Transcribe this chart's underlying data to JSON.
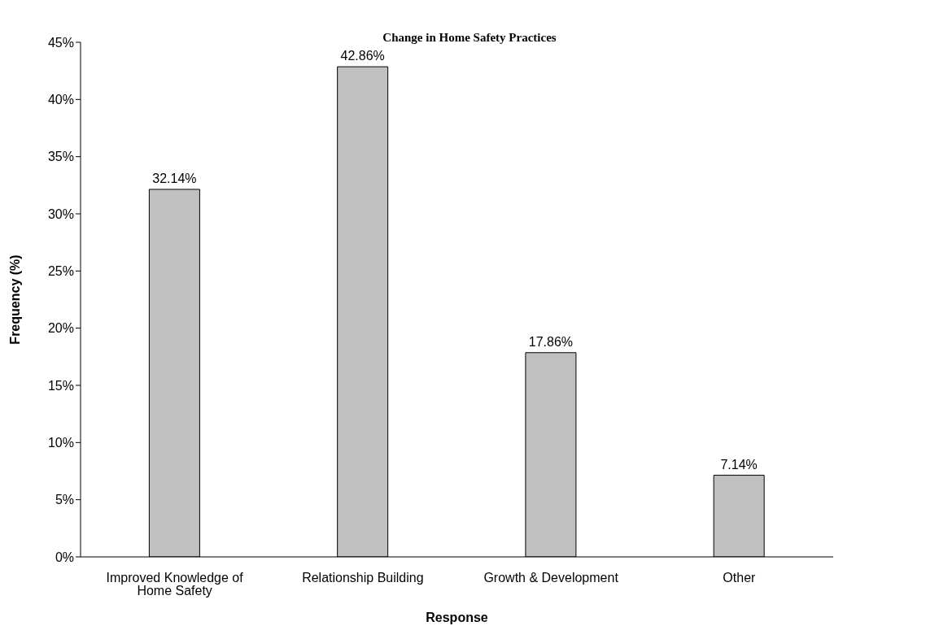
{
  "chart_data": {
    "type": "bar",
    "title": "Change in Home Safety Practices",
    "xlabel": "Response",
    "ylabel": "Frequency (%)",
    "categories": [
      "Improved Knowledge of Home Safety",
      "Relationship Building",
      "Growth & Development",
      "Other"
    ],
    "values": [
      32.14,
      42.86,
      17.86,
      7.14
    ],
    "value_labels": [
      "32.14%",
      "42.86%",
      "17.86%",
      "7.14%"
    ],
    "color": "#c0c0c0",
    "ylim": [
      0,
      45
    ],
    "yticks": [
      {
        "value": 0,
        "label": "0%"
      },
      {
        "value": 5,
        "label": "5%"
      },
      {
        "value": 10,
        "label": "10%"
      },
      {
        "value": 15,
        "label": "15%"
      },
      {
        "value": 20,
        "label": "20%"
      },
      {
        "value": 25,
        "label": "25%"
      },
      {
        "value": 30,
        "label": "30%"
      },
      {
        "value": 35,
        "label": "35%"
      },
      {
        "value": 40,
        "label": "40%"
      },
      {
        "value": 45,
        "label": "45%"
      }
    ],
    "grid": false,
    "legend": false
  }
}
